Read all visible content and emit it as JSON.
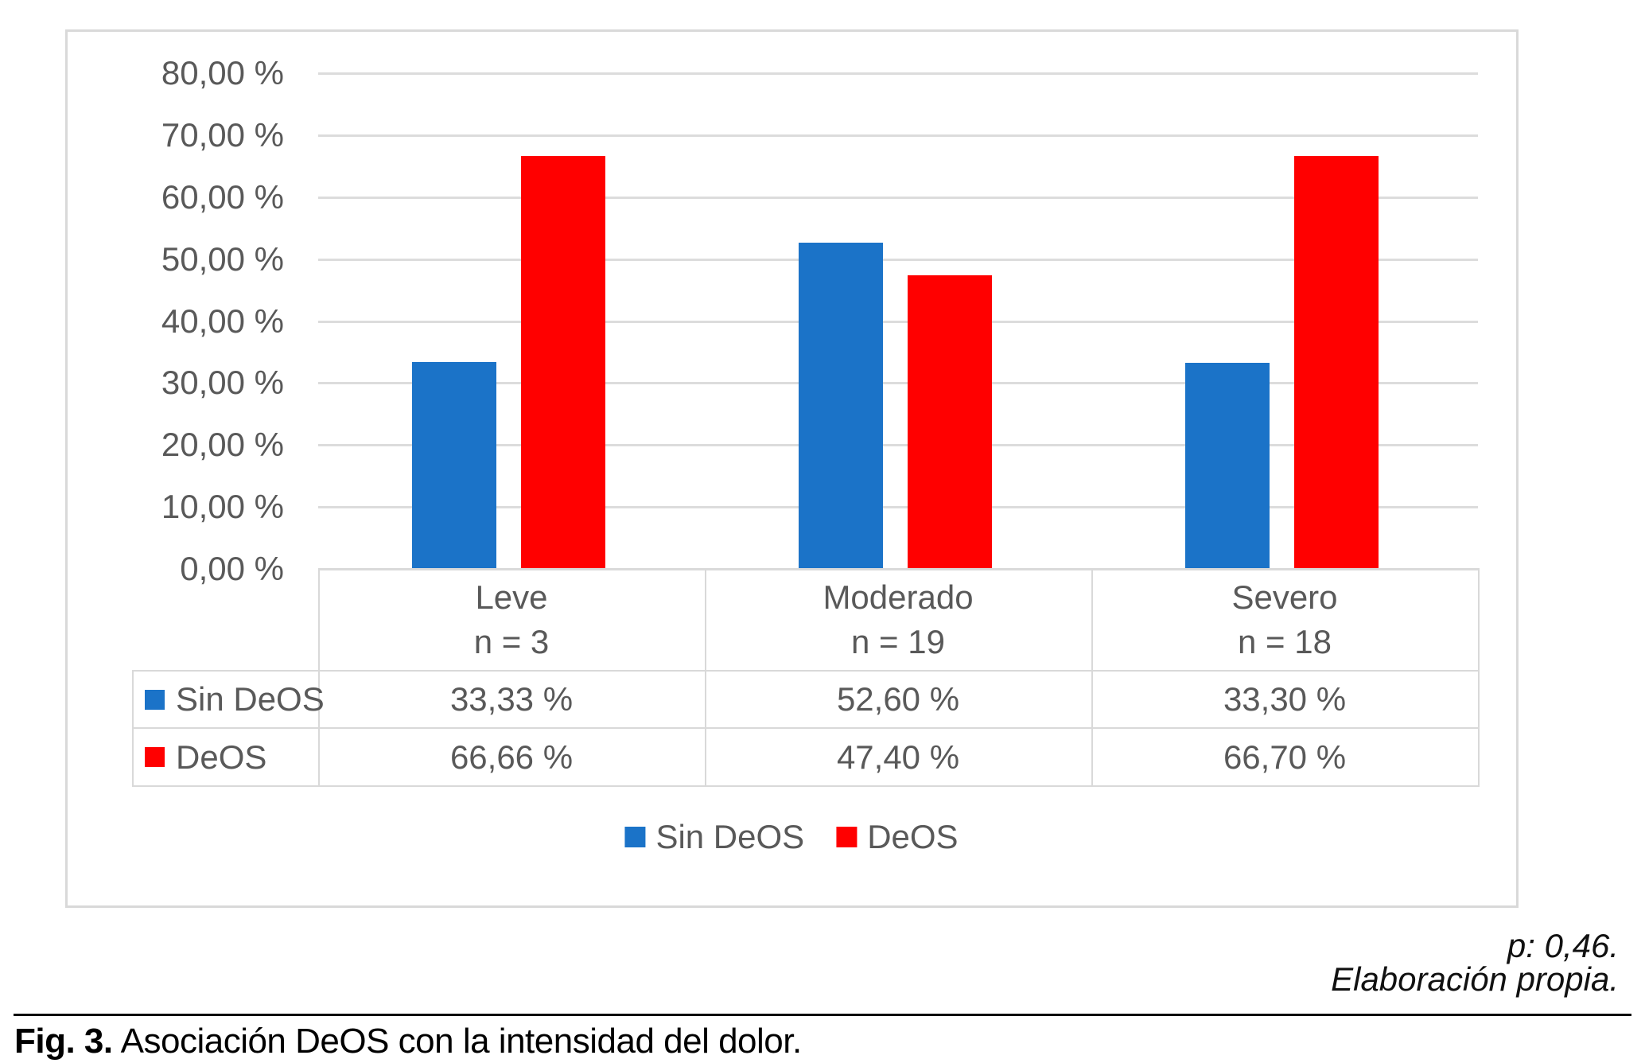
{
  "chart_data": {
    "type": "bar",
    "title": "",
    "xlabel": "",
    "ylabel": "",
    "ylim": [
      0,
      80
    ],
    "ytick_step": 10,
    "ytick_labels_top_down": [
      "80,00 %",
      "70,00 %",
      "60,00 %",
      "50,00 %",
      "40,00 %",
      "30,00 %",
      "20,00 %",
      "10,00 %",
      "0,00 %"
    ],
    "grid": true,
    "legend_position": "bottom",
    "categories": [
      "Leve",
      "Moderado",
      "Severo"
    ],
    "category_sublabels": [
      "n = 3",
      "n = 19",
      "n = 18"
    ],
    "series": [
      {
        "name": "Sin DeOS",
        "color": "#1B73C8",
        "values": [
          33.33,
          52.6,
          33.3
        ],
        "value_labels": [
          "33,33 %",
          "52,60 %",
          "33,30 %"
        ]
      },
      {
        "name": "DeOS",
        "color": "#FF0000",
        "values": [
          66.66,
          47.4,
          66.7
        ],
        "value_labels": [
          "66,66 %",
          "47,40 %",
          "66,70 %"
        ]
      }
    ]
  },
  "annotations": {
    "p_value": "p: 0,46.",
    "source": "Elaboración propia."
  },
  "caption": {
    "label": "Fig. 3.",
    "text": "Asociación DeOS con la intensidad del dolor."
  }
}
